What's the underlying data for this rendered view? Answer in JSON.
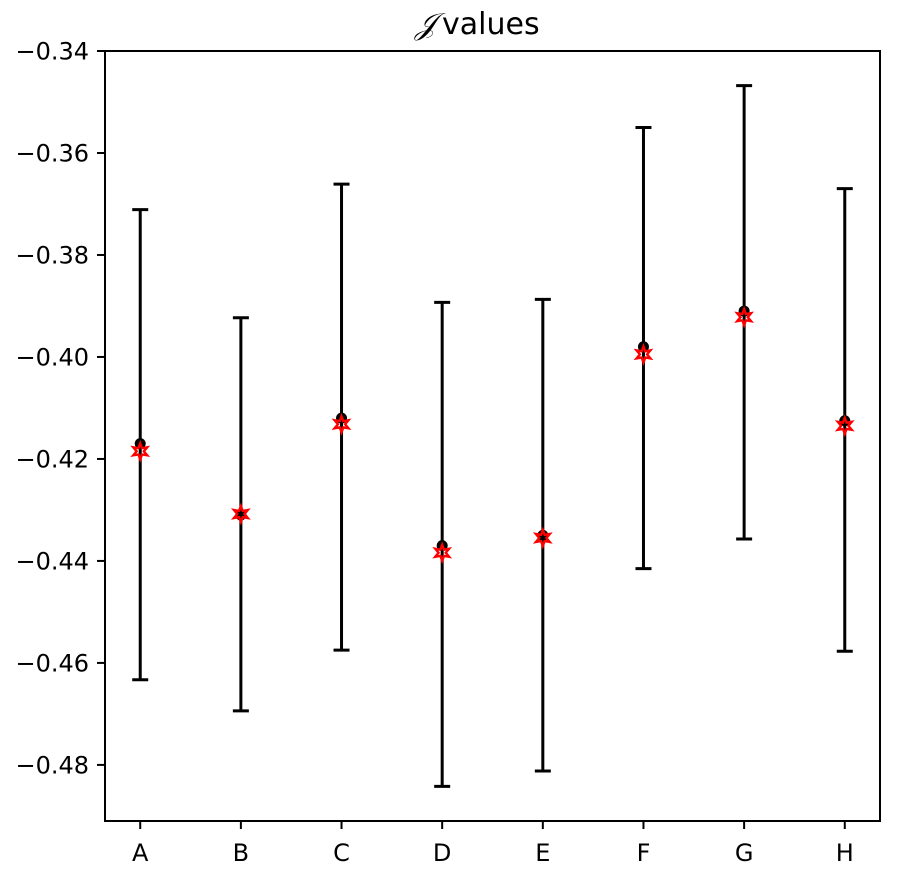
{
  "chart_data": {
    "type": "scatter",
    "title_symbol": "𝒥",
    "title": "values",
    "xlabel": "",
    "ylabel": "",
    "categories": [
      "A",
      "B",
      "C",
      "D",
      "E",
      "F",
      "G",
      "H"
    ],
    "ylim": [
      -0.491,
      -0.34
    ],
    "yticks": [
      -0.34,
      -0.36,
      -0.38,
      -0.4,
      -0.42,
      -0.44,
      -0.46,
      -0.48
    ],
    "ytick_labels": [
      "−0.34",
      "−0.36",
      "−0.38",
      "−0.40",
      "−0.42",
      "−0.44",
      "−0.46",
      "−0.48"
    ],
    "grid": false,
    "series": [
      {
        "marker": "circle",
        "color": "#000000",
        "values": [
          -0.417,
          -0.431,
          -0.412,
          -0.437,
          -0.435,
          -0.398,
          -0.391,
          -0.4125
        ],
        "error_low": [
          -0.4633,
          -0.4694,
          -0.4575,
          -0.4842,
          -0.4812,
          -0.4415,
          -0.4357,
          -0.4577
        ],
        "error_high": [
          -0.3711,
          -0.3923,
          -0.3661,
          -0.3893,
          -0.3887,
          -0.355,
          -0.3468,
          -0.367
        ]
      },
      {
        "marker": "star",
        "color": "#ff0000",
        "values": [
          -0.4185,
          -0.4308,
          -0.4132,
          -0.4384,
          -0.4355,
          -0.3995,
          -0.3922,
          -0.4135
        ]
      }
    ]
  }
}
